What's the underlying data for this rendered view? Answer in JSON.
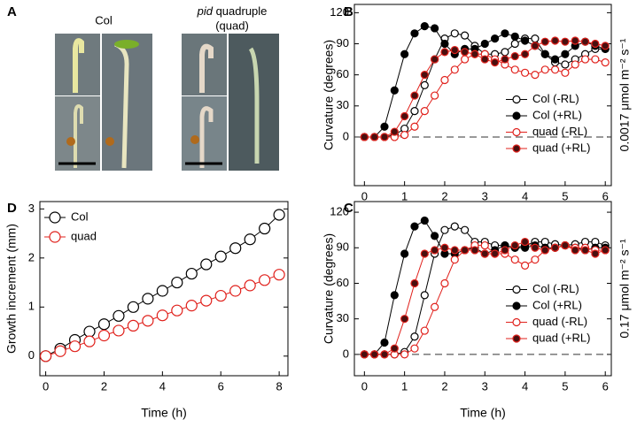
{
  "panel_a": {
    "label": "A",
    "col_title": "Col",
    "quad_title_italic": "pid",
    "quad_title_rest": "quadruple",
    "quad_title_line2": "(quad)"
  },
  "chart_data": [
    {
      "type": "line",
      "panel_label": "B",
      "ylabel": "Curvature (degrees)",
      "side_label": "0.0017 μmol m⁻² s⁻¹",
      "x": [
        0,
        0.25,
        0.5,
        0.75,
        1,
        1.25,
        1.5,
        1.75,
        2,
        2.25,
        2.5,
        2.75,
        3,
        3.25,
        3.5,
        3.75,
        4,
        4.25,
        4.5,
        4.75,
        5,
        5.25,
        5.5,
        5.75,
        6
      ],
      "xlim": [
        -0.25,
        6.15
      ],
      "ylim": [
        -47,
        128
      ],
      "xticks": [
        0,
        1,
        2,
        3,
        4,
        5,
        6
      ],
      "yticks": [
        0,
        30,
        60,
        90,
        120
      ],
      "zero_line": true,
      "legend": "lower right",
      "series": [
        {
          "name": "Col (-RL)",
          "color": "#000000",
          "fill": "#ffffff",
          "values": [
            0,
            0,
            0,
            2,
            8,
            25,
            50,
            75,
            95,
            100,
            98,
            88,
            80,
            80,
            82,
            90,
            95,
            95,
            80,
            72,
            70,
            75,
            80,
            85,
            85
          ]
        },
        {
          "name": "Col (+RL)",
          "color": "#000000",
          "fill": "#000000",
          "values": [
            0,
            0,
            10,
            45,
            80,
            100,
            107,
            105,
            90,
            80,
            85,
            85,
            90,
            95,
            100,
            97,
            93,
            88,
            80,
            75,
            80,
            88,
            92,
            88,
            85
          ]
        },
        {
          "name": "quad (-RL)",
          "color": "#e0201b",
          "fill": "#ffffff",
          "values": [
            0,
            0,
            0,
            0,
            2,
            10,
            25,
            40,
            55,
            65,
            75,
            80,
            80,
            75,
            70,
            65,
            62,
            60,
            65,
            65,
            62,
            70,
            75,
            75,
            72
          ]
        },
        {
          "name": "quad (+RL)",
          "color": "#e0201b",
          "fill": "#4a0f0f",
          "values": [
            0,
            0,
            0,
            5,
            20,
            40,
            60,
            75,
            82,
            84,
            82,
            80,
            75,
            72,
            75,
            78,
            80,
            88,
            92,
            93,
            92,
            93,
            92,
            90,
            88
          ]
        }
      ]
    },
    {
      "type": "line",
      "panel_label": "C",
      "ylabel": "Curvature (degrees)",
      "xlabel": "Time (h)",
      "side_label": "0.17 μmol m⁻² s⁻¹",
      "x": [
        0,
        0.25,
        0.5,
        0.75,
        1,
        1.25,
        1.5,
        1.75,
        2,
        2.25,
        2.5,
        2.75,
        3,
        3.25,
        3.5,
        3.75,
        4,
        4.25,
        4.5,
        4.75,
        5,
        5.25,
        5.5,
        5.75,
        6
      ],
      "xlim": [
        -0.25,
        6.15
      ],
      "ylim": [
        -18,
        129
      ],
      "xticks": [
        0,
        1,
        2,
        3,
        4,
        5,
        6
      ],
      "yticks": [
        0,
        30,
        60,
        90,
        120
      ],
      "zero_line": true,
      "legend": "lower right",
      "series": [
        {
          "name": "Col (-RL)",
          "color": "#000000",
          "fill": "#ffffff",
          "values": [
            0,
            0,
            0,
            0,
            2,
            15,
            50,
            85,
            105,
            108,
            105,
            95,
            95,
            92,
            92,
            90,
            92,
            95,
            95,
            93,
            92,
            93,
            95,
            95,
            92
          ]
        },
        {
          "name": "Col (+RL)",
          "color": "#000000",
          "fill": "#000000",
          "values": [
            0,
            0,
            10,
            50,
            85,
            108,
            113,
            100,
            85,
            85,
            88,
            90,
            85,
            88,
            92,
            90,
            90,
            92,
            90,
            90,
            92,
            90,
            88,
            90,
            90
          ]
        },
        {
          "name": "quad (-RL)",
          "color": "#e0201b",
          "fill": "#ffffff",
          "values": [
            0,
            0,
            0,
            0,
            0,
            5,
            20,
            40,
            60,
            80,
            88,
            92,
            92,
            85,
            85,
            80,
            75,
            80,
            88,
            90,
            92,
            90,
            90,
            88,
            88
          ]
        },
        {
          "name": "quad (+RL)",
          "color": "#e0201b",
          "fill": "#4a0f0f",
          "values": [
            0,
            0,
            0,
            5,
            30,
            60,
            85,
            88,
            90,
            88,
            88,
            88,
            85,
            85,
            88,
            92,
            95,
            90,
            88,
            90,
            92,
            88,
            88,
            85,
            88
          ]
        }
      ]
    },
    {
      "type": "line",
      "panel_label": "D",
      "ylabel": "Growth increment (mm)",
      "xlabel": "Time (h)",
      "x": [
        0,
        0.5,
        1,
        1.5,
        2,
        2.5,
        3,
        3.5,
        4,
        4.5,
        5,
        5.5,
        6,
        6.5,
        7,
        7.5,
        8
      ],
      "xlim": [
        -0.2,
        8.3
      ],
      "ylim": [
        -0.4,
        3.15
      ],
      "xticks": [
        0,
        2,
        4,
        6,
        8
      ],
      "yticks": [
        0,
        1,
        2,
        3
      ],
      "zero_line": false,
      "legend": "upper left",
      "big_markers": true,
      "series": [
        {
          "name": "Col",
          "color": "#000000",
          "fill": "#ffffff",
          "values": [
            0,
            0.15,
            0.33,
            0.5,
            0.65,
            0.82,
            1.0,
            1.17,
            1.33,
            1.5,
            1.68,
            1.87,
            2.03,
            2.2,
            2.38,
            2.6,
            2.88
          ]
        },
        {
          "name": "quad",
          "color": "#e0201b",
          "fill": "#ffffff",
          "values": [
            0,
            0.1,
            0.2,
            0.3,
            0.42,
            0.52,
            0.62,
            0.72,
            0.83,
            0.93,
            1.03,
            1.13,
            1.23,
            1.33,
            1.44,
            1.55,
            1.66
          ]
        }
      ]
    }
  ]
}
